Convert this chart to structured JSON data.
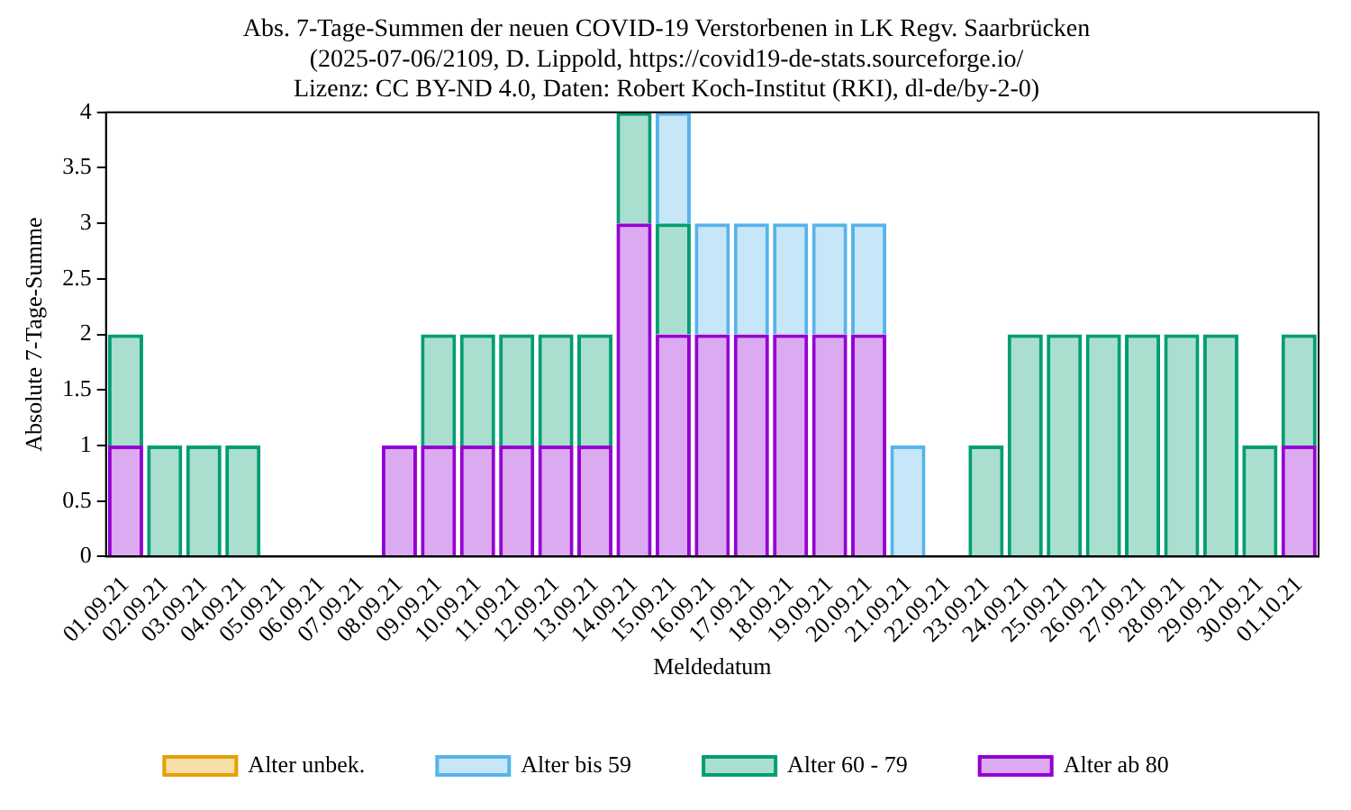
{
  "chart_data": {
    "type": "bar",
    "title": "Abs. 7-Tage-Summen der neuen COVID-19 Verstorbenen in LK Regv. Saarbrücken\n(2025-07-06/2109, D. Lippold, https://covid19-de-stats.sourceforge.io/\nLizenz: CC BY-ND 4.0, Daten: Robert Koch-Institut (RKI), dl-de/by-2-0)",
    "xlabel": "Meldedatum",
    "ylabel": "Absolute 7-Tage-Summe",
    "categories": [
      "01.09.21",
      "02.09.21",
      "03.09.21",
      "04.09.21",
      "05.09.21",
      "06.09.21",
      "07.09.21",
      "08.09.21",
      "09.09.21",
      "10.09.21",
      "11.09.21",
      "12.09.21",
      "13.09.21",
      "14.09.21",
      "15.09.21",
      "16.09.21",
      "17.09.21",
      "18.09.21",
      "19.09.21",
      "20.09.21",
      "21.09.21",
      "22.09.21",
      "23.09.21",
      "24.09.21",
      "25.09.21",
      "26.09.21",
      "27.09.21",
      "28.09.21",
      "29.09.21",
      "30.09.21",
      "01.10.21"
    ],
    "stacked": true,
    "series": [
      {
        "name": "Alter ab 80",
        "color": "#9400d3",
        "values": [
          1,
          0,
          0,
          0,
          0,
          0,
          0,
          1,
          1,
          1,
          1,
          1,
          1,
          3,
          2,
          2,
          2,
          2,
          2,
          2,
          0,
          0,
          0,
          0,
          0,
          0,
          0,
          0,
          0,
          0,
          1
        ]
      },
      {
        "name": "Alter 60 - 79",
        "color": "#009e73",
        "values": [
          1,
          1,
          1,
          1,
          0,
          0,
          0,
          0,
          1,
          1,
          1,
          1,
          1,
          1,
          1,
          0,
          0,
          0,
          0,
          0,
          0,
          0,
          1,
          2,
          2,
          2,
          2,
          2,
          2,
          1,
          1
        ]
      },
      {
        "name": "Alter bis 59",
        "color": "#56b4e9",
        "values": [
          0,
          0,
          0,
          0,
          0,
          0,
          0,
          0,
          0,
          0,
          0,
          0,
          0,
          0,
          1,
          1,
          1,
          1,
          1,
          1,
          1,
          0,
          0,
          0,
          0,
          0,
          0,
          0,
          0,
          0,
          0
        ]
      },
      {
        "name": "Alter unbek.",
        "color": "#e69f00",
        "values": [
          0,
          0,
          0,
          0,
          0,
          0,
          0,
          0,
          0,
          0,
          0,
          0,
          0,
          0,
          0,
          0,
          0,
          0,
          0,
          0,
          0,
          0,
          0,
          0,
          0,
          0,
          0,
          0,
          0,
          0,
          0
        ]
      }
    ],
    "ylim": [
      0,
      4
    ],
    "yticks": [
      0,
      0.5,
      1,
      1.5,
      2,
      2.5,
      3,
      3.5,
      4
    ],
    "grid": false,
    "legend": "bottom"
  }
}
